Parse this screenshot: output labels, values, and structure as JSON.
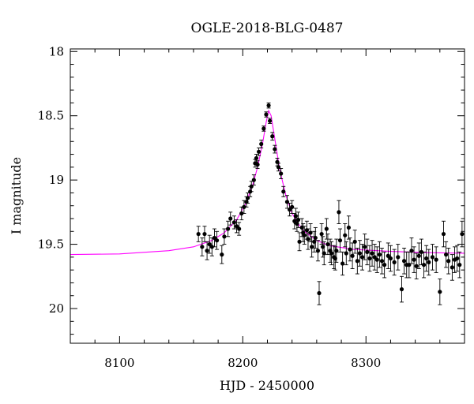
{
  "chart_data": {
    "type": "scatter",
    "title": "OGLE-2018-BLG-0487",
    "xlabel": "HJD - 2450000",
    "ylabel": "I magnitude",
    "xlim": [
      8060,
      8380
    ],
    "ylim": [
      20.27,
      17.98
    ],
    "y_inverted": true,
    "grid": false,
    "x_ticks": [
      8100,
      8200,
      8300
    ],
    "y_ticks": [
      18,
      18.5,
      19,
      19.5,
      20
    ],
    "x_tick_labels": [
      "8100",
      "8200",
      "8300"
    ],
    "y_tick_labels": [
      "18",
      "18.5",
      "19",
      "19.5",
      "20"
    ],
    "model_color": "#ff00ff",
    "point_color": "#000000",
    "model_curve": {
      "x": [
        8060,
        8100,
        8140,
        8160,
        8175,
        8185,
        8195,
        8202,
        8208,
        8212,
        8216,
        8219,
        8221,
        8223,
        8226,
        8230,
        8235,
        8240,
        8245,
        8250,
        8260,
        8270,
        8290,
        8320,
        8350,
        8380
      ],
      "y": [
        19.58,
        19.575,
        19.55,
        19.52,
        19.47,
        19.41,
        19.31,
        19.19,
        19.04,
        18.9,
        18.72,
        18.55,
        18.46,
        18.5,
        18.68,
        18.92,
        19.12,
        19.26,
        19.34,
        19.4,
        19.47,
        19.51,
        19.54,
        19.555,
        19.565,
        19.57
      ]
    },
    "series": [
      {
        "x": [
          8164,
          8167,
          8169,
          8171,
          8173,
          8175,
          8177,
          8179,
          8183,
          8185,
          8188,
          8190,
          8193,
          8195,
          8197,
          8199,
          8201,
          8203,
          8204,
          8206,
          8207,
          8209,
          8210,
          8211,
          8212,
          8213,
          8215,
          8217,
          8219,
          8221,
          8222,
          8224,
          8226,
          8228,
          8229,
          8231,
          8233,
          8236,
          8238,
          8240,
          8242,
          8243,
          8244,
          8245,
          8246,
          8248,
          8249,
          8250,
          8252,
          8253,
          8255,
          8256,
          8258,
          8259,
          8261,
          8262,
          8264,
          8265,
          8266,
          8268,
          8269,
          8271,
          8272,
          8274,
          8275,
          8276,
          8278,
          8279,
          8281,
          8283,
          8284,
          8286,
          8287,
          8289,
          8291,
          8293,
          8295,
          8297,
          8299,
          8301,
          8303,
          8305,
          8307,
          8309,
          8311,
          8313,
          8315,
          8318,
          8320,
          8323,
          8326,
          8329,
          8331,
          8333,
          8335,
          8337,
          8339,
          8341,
          8343,
          8345,
          8347,
          8349,
          8351,
          8354,
          8357,
          8360,
          8363,
          8365,
          8367,
          8370,
          8372,
          8374,
          8376,
          8378
        ],
        "y": [
          19.42,
          19.52,
          19.42,
          19.55,
          19.5,
          19.52,
          19.45,
          19.47,
          19.58,
          19.44,
          19.38,
          19.3,
          19.33,
          19.36,
          19.38,
          19.26,
          19.21,
          19.17,
          19.14,
          19.09,
          19.05,
          19.0,
          18.87,
          18.83,
          18.88,
          18.78,
          18.72,
          18.6,
          18.49,
          18.42,
          18.54,
          18.66,
          18.76,
          18.86,
          18.9,
          18.95,
          19.09,
          19.17,
          19.23,
          19.21,
          19.32,
          19.28,
          19.34,
          19.31,
          19.48,
          19.37,
          19.41,
          19.43,
          19.39,
          19.46,
          19.41,
          19.52,
          19.48,
          19.45,
          19.55,
          19.88,
          19.42,
          19.52,
          19.57,
          19.38,
          19.5,
          19.55,
          19.57,
          19.6,
          19.61,
          19.55,
          19.25,
          19.47,
          19.65,
          19.43,
          19.57,
          19.37,
          19.54,
          19.59,
          19.48,
          19.63,
          19.57,
          19.6,
          19.52,
          19.56,
          19.61,
          19.57,
          19.6,
          19.62,
          19.58,
          19.63,
          19.66,
          19.59,
          19.61,
          19.64,
          19.6,
          19.85,
          19.63,
          19.66,
          19.66,
          19.55,
          19.62,
          19.67,
          19.59,
          19.56,
          19.66,
          19.61,
          19.64,
          19.6,
          19.62,
          19.87,
          19.42,
          19.58,
          19.63,
          19.68,
          19.62,
          19.61,
          19.66,
          19.42
        ],
        "err": [
          0.06,
          0.07,
          0.06,
          0.07,
          0.07,
          0.07,
          0.07,
          0.07,
          0.07,
          0.06,
          0.06,
          0.05,
          0.05,
          0.05,
          0.05,
          0.05,
          0.05,
          0.04,
          0.04,
          0.04,
          0.04,
          0.04,
          0.03,
          0.03,
          0.03,
          0.03,
          0.03,
          0.02,
          0.02,
          0.02,
          0.02,
          0.03,
          0.03,
          0.03,
          0.03,
          0.04,
          0.04,
          0.05,
          0.05,
          0.05,
          0.06,
          0.06,
          0.06,
          0.06,
          0.07,
          0.07,
          0.07,
          0.07,
          0.07,
          0.08,
          0.07,
          0.08,
          0.08,
          0.08,
          0.08,
          0.09,
          0.08,
          0.08,
          0.09,
          0.08,
          0.08,
          0.09,
          0.09,
          0.09,
          0.09,
          0.09,
          0.09,
          0.09,
          0.09,
          0.09,
          0.09,
          0.09,
          0.09,
          0.1,
          0.09,
          0.1,
          0.1,
          0.1,
          0.1,
          0.1,
          0.1,
          0.1,
          0.1,
          0.1,
          0.1,
          0.1,
          0.1,
          0.1,
          0.1,
          0.1,
          0.1,
          0.1,
          0.1,
          0.1,
          0.1,
          0.1,
          0.1,
          0.1,
          0.1,
          0.1,
          0.1,
          0.1,
          0.1,
          0.1,
          0.1,
          0.1,
          0.1,
          0.1,
          0.1,
          0.1,
          0.1,
          0.1,
          0.1,
          0.1
        ]
      }
    ]
  }
}
